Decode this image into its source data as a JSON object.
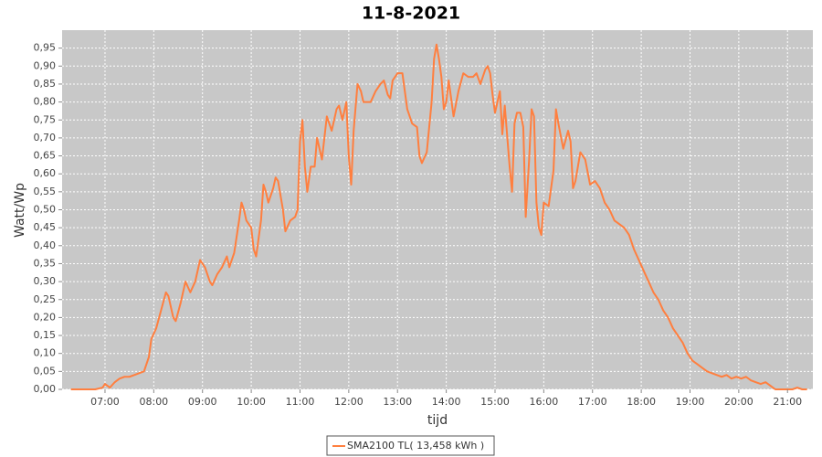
{
  "chart_data": {
    "type": "line",
    "title": "11-8-2021",
    "x_label": "tijd",
    "y_label": "Watt/Wp",
    "x": [
      6.3,
      6.8,
      6.95,
      7.0,
      7.05,
      7.1,
      7.2,
      7.3,
      7.4,
      7.5,
      7.6,
      7.7,
      7.8,
      7.9,
      7.95,
      8.05,
      8.15,
      8.25,
      8.3,
      8.4,
      8.45,
      8.55,
      8.65,
      8.75,
      8.85,
      8.95,
      9.05,
      9.15,
      9.2,
      9.3,
      9.4,
      9.5,
      9.55,
      9.65,
      9.75,
      9.8,
      9.85,
      9.9,
      10.0,
      10.05,
      10.1,
      10.2,
      10.25,
      10.3,
      10.35,
      10.45,
      10.5,
      10.55,
      10.65,
      10.7,
      10.8,
      10.9,
      10.95,
      11.0,
      11.05,
      11.1,
      11.15,
      11.22,
      11.3,
      11.35,
      11.4,
      11.45,
      11.55,
      11.65,
      11.75,
      11.8,
      11.87,
      11.95,
      12.0,
      12.05,
      12.1,
      12.18,
      12.25,
      12.3,
      12.37,
      12.45,
      12.55,
      12.65,
      12.72,
      12.8,
      12.85,
      12.9,
      13.0,
      13.1,
      13.2,
      13.3,
      13.4,
      13.45,
      13.5,
      13.6,
      13.7,
      13.75,
      13.8,
      13.85,
      13.9,
      13.95,
      14.0,
      14.05,
      14.15,
      14.25,
      14.35,
      14.45,
      14.55,
      14.62,
      14.7,
      14.8,
      14.85,
      14.9,
      14.95,
      15.0,
      15.05,
      15.1,
      15.15,
      15.2,
      15.3,
      15.35,
      15.4,
      15.45,
      15.52,
      15.58,
      15.63,
      15.7,
      15.75,
      15.8,
      15.85,
      15.9,
      15.95,
      16.0,
      16.1,
      16.2,
      16.25,
      16.3,
      16.4,
      16.5,
      16.55,
      16.6,
      16.65,
      16.75,
      16.85,
      16.95,
      17.05,
      17.15,
      17.25,
      17.35,
      17.45,
      17.55,
      17.65,
      17.75,
      17.85,
      17.95,
      18.05,
      18.15,
      18.25,
      18.35,
      18.45,
      18.55,
      18.65,
      18.75,
      18.85,
      18.95,
      19.05,
      19.15,
      19.25,
      19.35,
      19.45,
      19.55,
      19.65,
      19.75,
      19.85,
      19.95,
      20.05,
      20.15,
      20.25,
      20.35,
      20.45,
      20.55,
      20.65,
      20.75,
      20.9,
      21.1,
      21.2,
      21.3,
      21.4
    ],
    "series": [
      {
        "name": "SMA2100 TL( 13,458 kWh )",
        "color": "#ff7f3f",
        "values": [
          0,
          0,
          0.005,
          0.015,
          0.01,
          0.005,
          0.02,
          0.03,
          0.035,
          0.035,
          0.04,
          0.045,
          0.05,
          0.09,
          0.14,
          0.17,
          0.22,
          0.27,
          0.26,
          0.2,
          0.19,
          0.24,
          0.3,
          0.27,
          0.3,
          0.36,
          0.34,
          0.3,
          0.29,
          0.32,
          0.34,
          0.37,
          0.34,
          0.38,
          0.47,
          0.52,
          0.5,
          0.47,
          0.45,
          0.39,
          0.37,
          0.47,
          0.57,
          0.55,
          0.52,
          0.56,
          0.59,
          0.58,
          0.5,
          0.44,
          0.47,
          0.48,
          0.5,
          0.69,
          0.75,
          0.62,
          0.55,
          0.62,
          0.62,
          0.7,
          0.67,
          0.64,
          0.76,
          0.72,
          0.78,
          0.79,
          0.75,
          0.8,
          0.65,
          0.57,
          0.72,
          0.85,
          0.83,
          0.8,
          0.8,
          0.8,
          0.83,
          0.85,
          0.86,
          0.82,
          0.81,
          0.86,
          0.88,
          0.88,
          0.78,
          0.74,
          0.73,
          0.65,
          0.63,
          0.66,
          0.8,
          0.92,
          0.96,
          0.92,
          0.87,
          0.78,
          0.8,
          0.86,
          0.76,
          0.83,
          0.88,
          0.87,
          0.87,
          0.88,
          0.85,
          0.89,
          0.9,
          0.88,
          0.82,
          0.77,
          0.8,
          0.83,
          0.71,
          0.79,
          0.62,
          0.55,
          0.74,
          0.77,
          0.77,
          0.73,
          0.48,
          0.64,
          0.78,
          0.76,
          0.52,
          0.45,
          0.43,
          0.52,
          0.51,
          0.61,
          0.78,
          0.74,
          0.67,
          0.72,
          0.69,
          0.56,
          0.58,
          0.66,
          0.64,
          0.57,
          0.58,
          0.56,
          0.52,
          0.5,
          0.47,
          0.46,
          0.45,
          0.43,
          0.39,
          0.36,
          0.33,
          0.3,
          0.27,
          0.25,
          0.22,
          0.2,
          0.17,
          0.15,
          0.13,
          0.1,
          0.08,
          0.07,
          0.06,
          0.05,
          0.045,
          0.04,
          0.035,
          0.04,
          0.03,
          0.035,
          0.03,
          0.035,
          0.025,
          0.02,
          0.015,
          0.02,
          0.01,
          0,
          0,
          0,
          0.005,
          0,
          0
        ]
      }
    ],
    "xlim": [
      6.12,
      21.52
    ],
    "xticks": [
      {
        "value": 7,
        "label": "07:00"
      },
      {
        "value": 8,
        "label": "08:00"
      },
      {
        "value": 9,
        "label": "09:00"
      },
      {
        "value": 10,
        "label": "10:00"
      },
      {
        "value": 11,
        "label": "11:00"
      },
      {
        "value": 12,
        "label": "12:00"
      },
      {
        "value": 13,
        "label": "13:00"
      },
      {
        "value": 14,
        "label": "14:00"
      },
      {
        "value": 15,
        "label": "15:00"
      },
      {
        "value": 16,
        "label": "16:00"
      },
      {
        "value": 17,
        "label": "17:00"
      },
      {
        "value": 18,
        "label": "18:00"
      },
      {
        "value": 19,
        "label": "19:00"
      },
      {
        "value": 20,
        "label": "20:00"
      },
      {
        "value": 21,
        "label": "21:00"
      }
    ],
    "ylim": [
      0,
      1.0
    ],
    "yticks": [
      {
        "value": 0,
        "label": "0,00"
      },
      {
        "value": 0.05,
        "label": "0,05"
      },
      {
        "value": 0.1,
        "label": "0,10"
      },
      {
        "value": 0.15,
        "label": "0,15"
      },
      {
        "value": 0.2,
        "label": "0,20"
      },
      {
        "value": 0.25,
        "label": "0,25"
      },
      {
        "value": 0.3,
        "label": "0,30"
      },
      {
        "value": 0.35,
        "label": "0,35"
      },
      {
        "value": 0.4,
        "label": "0,40"
      },
      {
        "value": 0.45,
        "label": "0,45"
      },
      {
        "value": 0.5,
        "label": "0,50"
      },
      {
        "value": 0.55,
        "label": "0,55"
      },
      {
        "value": 0.6,
        "label": "0,60"
      },
      {
        "value": 0.65,
        "label": "0,65"
      },
      {
        "value": 0.7,
        "label": "0,70"
      },
      {
        "value": 0.75,
        "label": "0,75"
      },
      {
        "value": 0.8,
        "label": "0,80"
      },
      {
        "value": 0.85,
        "label": "0,85"
      },
      {
        "value": 0.9,
        "label": "0,90"
      },
      {
        "value": 0.95,
        "label": "0,95"
      }
    ],
    "grid": true
  }
}
